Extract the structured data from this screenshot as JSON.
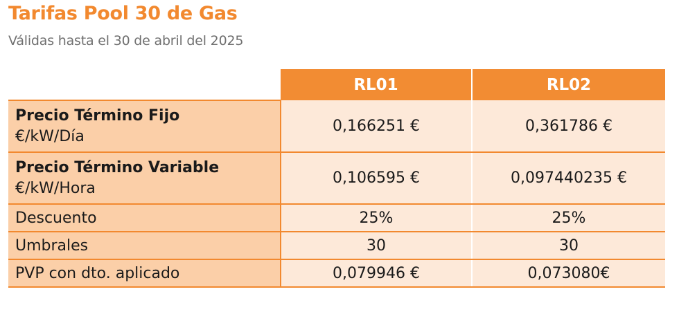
{
  "header": {
    "title": "Tarifas Pool 30 de Gas",
    "subtitle": "Válidas hasta el 30 de abril del 2025"
  },
  "table": {
    "columns": [
      "RL01",
      "RL02"
    ],
    "rows": [
      {
        "label": "Precio Término Fijo",
        "unit": "€/kW/Día",
        "values": [
          "0,166251 €",
          "0,361786 €"
        ]
      },
      {
        "label": "Precio Término Variable",
        "unit": "€/kW/Hora",
        "values": [
          "0,106595 €",
          "0,097440235 €"
        ]
      },
      {
        "label": "Descuento",
        "values": [
          "25%",
          "25%"
        ]
      },
      {
        "label": "Umbrales",
        "values": [
          "30",
          "30"
        ]
      },
      {
        "label": "PVP con dto. aplicado",
        "values": [
          "0,079946 €",
          "0,073080€"
        ]
      }
    ]
  },
  "colors": {
    "accent": "#f2892f",
    "header_bg": "#f28c33",
    "label_bg": "#fbcfa8",
    "value_bg": "#fde9d9",
    "subtitle": "#707070"
  }
}
